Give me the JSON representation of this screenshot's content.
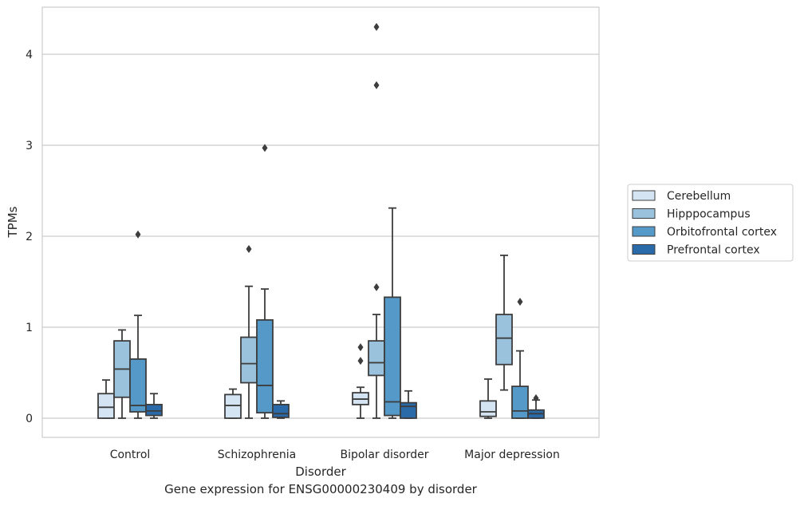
{
  "chart_data": {
    "type": "box",
    "xlabel": "Disorder",
    "ylabel": "TPMs",
    "ylim": [
      -0.2,
      4.5
    ],
    "yticks": [
      0,
      1,
      2,
      3,
      4
    ],
    "grid": "horizontal",
    "legend_position": "right",
    "categories": [
      "Control",
      "Schizophrenia",
      "Bipolar disorder",
      "Major depression"
    ],
    "series": [
      {
        "name": "Cerebellum",
        "color": "#d4e4f3",
        "boxes": [
          {
            "low": 0.0,
            "q1": 0.0,
            "median": 0.12,
            "q3": 0.27,
            "high": 0.42,
            "outliers": []
          },
          {
            "low": 0.0,
            "q1": 0.0,
            "median": 0.14,
            "q3": 0.26,
            "high": 0.32,
            "outliers": []
          },
          {
            "low": 0.0,
            "q1": 0.15,
            "median": 0.21,
            "q3": 0.28,
            "high": 0.34,
            "outliers": [
              0.63,
              0.78
            ]
          },
          {
            "low": 0.0,
            "q1": 0.02,
            "median": 0.07,
            "q3": 0.19,
            "high": 0.43,
            "outliers": []
          }
        ]
      },
      {
        "name": "Hipppocampus",
        "color": "#9ac2dc",
        "boxes": [
          {
            "low": 0.0,
            "q1": 0.23,
            "median": 0.54,
            "q3": 0.85,
            "high": 0.97,
            "outliers": []
          },
          {
            "low": 0.0,
            "q1": 0.39,
            "median": 0.6,
            "q3": 0.89,
            "high": 1.45,
            "outliers": [
              1.86
            ]
          },
          {
            "low": 0.0,
            "q1": 0.47,
            "median": 0.61,
            "q3": 0.85,
            "high": 1.14,
            "outliers": [
              1.44,
              4.3,
              3.66
            ]
          },
          {
            "low": 0.31,
            "q1": 0.59,
            "median": 0.88,
            "q3": 1.14,
            "high": 1.79,
            "outliers": []
          }
        ]
      },
      {
        "name": "Orbitofrontal cortex",
        "color": "#5499c7",
        "boxes": [
          {
            "low": 0.0,
            "q1": 0.07,
            "median": 0.14,
            "q3": 0.65,
            "high": 1.13,
            "outliers": [
              2.02
            ]
          },
          {
            "low": 0.0,
            "q1": 0.06,
            "median": 0.36,
            "q3": 1.08,
            "high": 1.42,
            "outliers": [
              2.97
            ]
          },
          {
            "low": 0.0,
            "q1": 0.03,
            "median": 0.18,
            "q3": 1.33,
            "high": 2.31,
            "outliers": []
          },
          {
            "low": 0.0,
            "q1": 0.0,
            "median": 0.08,
            "q3": 0.35,
            "high": 0.74,
            "outliers": [
              1.28
            ]
          }
        ]
      },
      {
        "name": "Prefrontal cortex",
        "color": "#2a6aa9",
        "boxes": [
          {
            "low": 0.0,
            "q1": 0.03,
            "median": 0.08,
            "q3": 0.15,
            "high": 0.27,
            "outliers": []
          },
          {
            "low": 0.0,
            "q1": 0.01,
            "median": 0.05,
            "q3": 0.15,
            "high": 0.19,
            "outliers": []
          },
          {
            "low": 0.0,
            "q1": 0.0,
            "median": 0.13,
            "q3": 0.17,
            "high": 0.3,
            "outliers": []
          },
          {
            "low": 0.0,
            "q1": 0.0,
            "median": 0.05,
            "q3": 0.09,
            "high": 0.2,
            "outliers": [
              0.22
            ]
          }
        ]
      }
    ]
  },
  "caption": "Gene expression for ENSG00000230409 by disorder"
}
